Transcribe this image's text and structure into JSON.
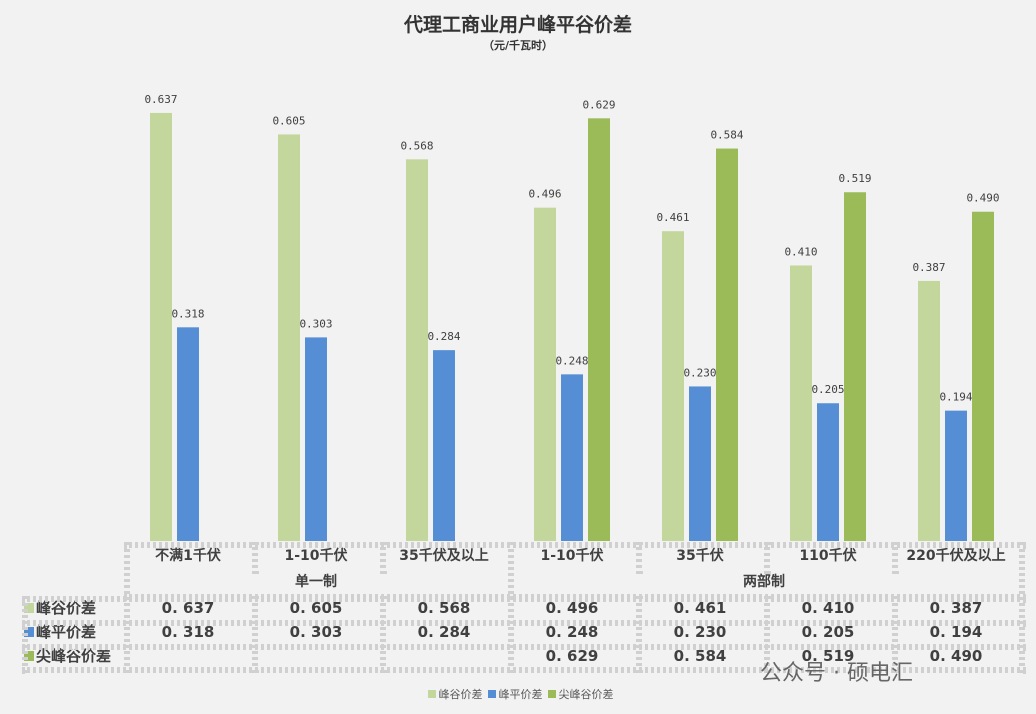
{
  "chart_data": {
    "type": "bar",
    "title": "代理工商业用户峰平谷价差",
    "subtitle": "（元/千瓦时）",
    "categories": [
      "不满1千伏",
      "1-10千伏",
      "35千伏及以上",
      "1-10千伏",
      "35千伏",
      "110千伏",
      "220千伏及以上"
    ],
    "groups": [
      {
        "label": "单一制",
        "span": 3
      },
      {
        "label": "两部制",
        "span": 4
      }
    ],
    "series": [
      {
        "name": "峰谷价差",
        "color": "#c3d69b",
        "values": [
          0.637,
          0.605,
          0.568,
          0.496,
          0.461,
          0.41,
          0.387
        ],
        "labels": [
          "0.637",
          "0.605",
          "0.568",
          "0.496",
          "0.461",
          "0.410",
          "0.387"
        ],
        "table": [
          "0. 637",
          "0. 605",
          "0. 568",
          "0. 496",
          "0. 461",
          "0. 410",
          "0. 387"
        ]
      },
      {
        "name": "峰平价差",
        "color": "#558ed5",
        "values": [
          0.318,
          0.303,
          0.284,
          0.248,
          0.23,
          0.205,
          0.194
        ],
        "labels": [
          "0.318",
          "0.303",
          "0.284",
          "0.248",
          "0.230",
          "0.205",
          "0.194"
        ],
        "table": [
          "0. 318",
          "0. 303",
          "0. 284",
          "0. 248",
          "0. 230",
          "0. 205",
          "0. 194"
        ]
      },
      {
        "name": "尖峰谷价差",
        "color": "#9bbb59",
        "values": [
          null,
          null,
          null,
          0.629,
          0.584,
          0.519,
          0.49
        ],
        "labels": [
          "",
          "",
          "",
          "0.629",
          "0.584",
          "0.519",
          "0.490"
        ],
        "table": [
          "",
          "",
          "",
          "0. 629",
          "0. 584",
          "0. 519",
          "0. 490"
        ]
      }
    ],
    "ylim": [
      0,
      0.7
    ],
    "grid": false,
    "legend": "bottom"
  },
  "watermark": "公众号 · 硕电汇"
}
